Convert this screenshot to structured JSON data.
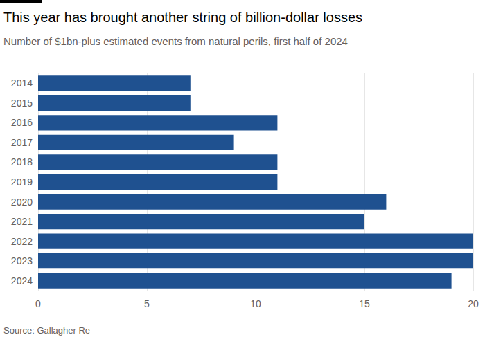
{
  "chart_data": {
    "type": "bar",
    "orientation": "horizontal",
    "title": "This year has brought another string of billion-dollar losses",
    "subtitle": "Number of $1bn-plus estimated events from natural perils, first half of 2024",
    "source": "Source: Gallagher Re",
    "categories": [
      "2014",
      "2015",
      "2016",
      "2017",
      "2018",
      "2019",
      "2020",
      "2021",
      "2022",
      "2023",
      "2024"
    ],
    "values": [
      7,
      7,
      11,
      9,
      11,
      11,
      16,
      15,
      20,
      20,
      19
    ],
    "color": "#1f5190",
    "xlim": [
      0,
      20
    ],
    "xticks": [
      0,
      5,
      10,
      15,
      20
    ],
    "grid": true
  }
}
